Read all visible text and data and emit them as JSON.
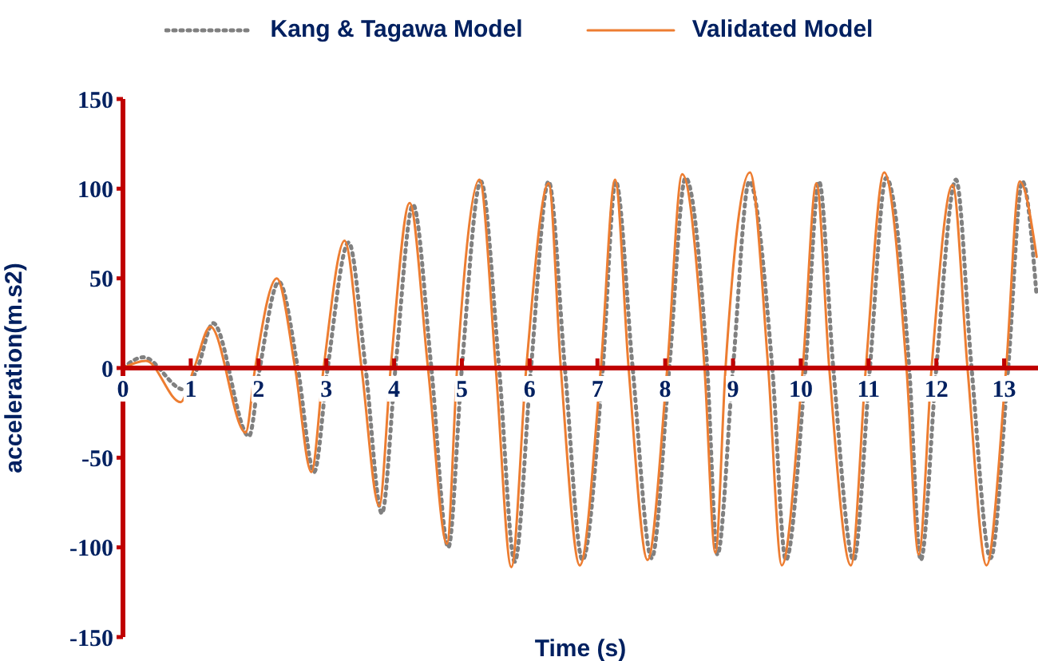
{
  "chart_data": {
    "type": "line",
    "xlabel": "Time (s)",
    "ylabel": "acceleration(m.s2)",
    "xlim": [
      0,
      13.5
    ],
    "xticks": [
      0,
      1,
      2,
      3,
      4,
      5,
      6,
      7,
      8,
      9,
      10,
      11,
      12,
      13
    ],
    "ylim": [
      -150,
      150
    ],
    "yticks": [
      -150,
      -100,
      -50,
      0,
      50,
      100,
      150
    ],
    "grid": false,
    "legend": "top",
    "marker": "none",
    "series": [
      {
        "name": "Kang & Tagawa Model",
        "color": "#808080",
        "line_style": "dotted",
        "x": [
          0,
          0.3,
          0.9,
          1.1,
          1.33,
          1.86,
          2.02,
          2.3,
          2.58,
          2.82,
          3.02,
          3.33,
          3.58,
          3.82,
          4.02,
          4.28,
          4.55,
          4.8,
          5.0,
          5.28,
          5.55,
          5.78,
          6.02,
          6.28,
          6.52,
          6.78,
          7.08,
          7.27,
          7.52,
          7.8,
          8.06,
          8.3,
          8.62,
          8.77,
          9.0,
          9.24,
          9.58,
          9.78,
          10.07,
          10.27,
          10.48,
          10.78,
          11.02,
          11.26,
          11.6,
          11.77,
          12.0,
          12.29,
          12.52,
          12.8,
          13.06,
          13.27,
          13.48
        ],
        "values": [
          0,
          6,
          -12,
          0,
          25,
          -38,
          0,
          48,
          0,
          -58,
          0,
          70,
          0,
          -81,
          0,
          91,
          0,
          -100,
          0,
          104,
          0,
          -108,
          0,
          104,
          0,
          -107,
          0,
          104,
          0,
          -106,
          0,
          106,
          0,
          -104,
          0,
          104,
          0,
          -107,
          0,
          104,
          0,
          -107,
          0,
          106,
          0,
          -107,
          0,
          105,
          0,
          -106,
          0,
          104,
          40
        ]
      },
      {
        "name": "Validated Model",
        "color": "#ed7d31",
        "line_style": "solid",
        "x": [
          0,
          0.34,
          0.85,
          1.05,
          1.29,
          1.81,
          1.95,
          2.27,
          2.54,
          2.78,
          2.96,
          3.27,
          3.52,
          3.78,
          3.95,
          4.23,
          4.5,
          4.78,
          4.93,
          5.26,
          5.5,
          5.73,
          5.95,
          6.28,
          6.46,
          6.74,
          7.05,
          7.26,
          7.46,
          7.74,
          8.03,
          8.25,
          8.58,
          8.74,
          8.89,
          9.25,
          9.52,
          9.72,
          10.03,
          10.23,
          10.42,
          10.74,
          10.96,
          11.23,
          11.56,
          11.74,
          11.93,
          12.24,
          12.46,
          12.74,
          13.03,
          13.23,
          13.48
        ],
        "values": [
          0,
          4,
          -19,
          0,
          23,
          -36,
          0,
          50,
          0,
          -58,
          0,
          71,
          0,
          -77,
          0,
          92,
          0,
          -98,
          0,
          105,
          0,
          -111,
          0,
          103,
          0,
          -110,
          0,
          105,
          0,
          -107,
          0,
          108,
          0,
          -103,
          0,
          109,
          0,
          -110,
          0,
          103,
          0,
          -110,
          0,
          109,
          0,
          -104,
          0,
          102,
          0,
          -110,
          0,
          104,
          62
        ]
      }
    ]
  }
}
